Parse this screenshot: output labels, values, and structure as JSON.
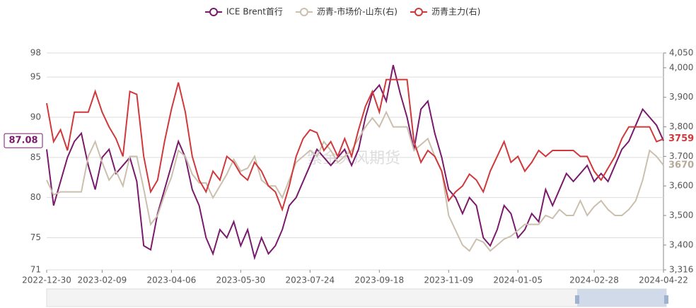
{
  "chart_data": {
    "type": "line",
    "categories": [
      "2022-12-30",
      null,
      null,
      null,
      null,
      null,
      null,
      null,
      "2023-02-09",
      null,
      null,
      null,
      null,
      null,
      null,
      null,
      null,
      null,
      "2023-04-06",
      null,
      null,
      null,
      null,
      null,
      null,
      null,
      null,
      null,
      "2023-05-30",
      null,
      null,
      null,
      null,
      null,
      null,
      null,
      null,
      null,
      "2023-07-24",
      null,
      null,
      null,
      null,
      null,
      null,
      null,
      null,
      null,
      "2023-09-18",
      null,
      null,
      null,
      null,
      null,
      null,
      null,
      null,
      null,
      "2023-11-09",
      null,
      null,
      null,
      null,
      null,
      null,
      null,
      null,
      null,
      "2024-01-05",
      null,
      null,
      null,
      null,
      null,
      null,
      null,
      null,
      null,
      null,
      "2024-02-28",
      null,
      null,
      null,
      null,
      null,
      null,
      null,
      null,
      null,
      "2024-04-22"
    ],
    "series": [
      {
        "name": "ICE Brent首行",
        "color": "#7a1a6c",
        "values": [
          86,
          79,
          82,
          85,
          87,
          88,
          84,
          81,
          85,
          86,
          83,
          84,
          85,
          82,
          74,
          73.5,
          78,
          81,
          84,
          87,
          85,
          81,
          79,
          75,
          73,
          76,
          75,
          77,
          74,
          76,
          72.5,
          75,
          73,
          74,
          76,
          79,
          80,
          82,
          84,
          86,
          85,
          84,
          85,
          86,
          84,
          86,
          90,
          93,
          94,
          92,
          96.5,
          93,
          90,
          86,
          91,
          92,
          88,
          85,
          81,
          80,
          78,
          80,
          79,
          75,
          74,
          76,
          79,
          78,
          75,
          76,
          78,
          77,
          81,
          79,
          81,
          83,
          82,
          83,
          84,
          82,
          83,
          82,
          84,
          86,
          87,
          89,
          91,
          90,
          89,
          87.08
        ]
      },
      {
        "name": "沥青-市场价-山东(右)",
        "color": "#cbbfae",
        "axis": "y2",
        "values": [
          3620,
          3570,
          3580,
          3580,
          3580,
          3580,
          3700,
          3750,
          3680,
          3620,
          3650,
          3600,
          3700,
          3700,
          3590,
          3470,
          3500,
          3570,
          3630,
          3720,
          3700,
          3640,
          3610,
          3610,
          3560,
          3600,
          3640,
          3690,
          3650,
          3660,
          3700,
          3620,
          3600,
          3600,
          3560,
          3620,
          3680,
          3700,
          3720,
          3700,
          3750,
          3720,
          3680,
          3700,
          3720,
          3760,
          3800,
          3830,
          3800,
          3850,
          3800,
          3800,
          3800,
          3720,
          3740,
          3760,
          3700,
          3650,
          3500,
          3450,
          3400,
          3380,
          3420,
          3410,
          3380,
          3400,
          3420,
          3430,
          3450,
          3470,
          3470,
          3470,
          3500,
          3490,
          3520,
          3500,
          3500,
          3550,
          3500,
          3530,
          3550,
          3520,
          3500,
          3500,
          3520,
          3550,
          3620,
          3720,
          3700,
          3670
        ]
      },
      {
        "name": "沥青主力(右)",
        "color": "#d0393b",
        "axis": "y2",
        "values": [
          3880,
          3750,
          3790,
          3720,
          3850,
          3850,
          3850,
          3920,
          3850,
          3800,
          3760,
          3700,
          3920,
          3910,
          3700,
          3580,
          3620,
          3750,
          3860,
          3950,
          3850,
          3700,
          3620,
          3580,
          3650,
          3620,
          3700,
          3680,
          3640,
          3620,
          3680,
          3650,
          3600,
          3580,
          3520,
          3600,
          3700,
          3760,
          3790,
          3780,
          3720,
          3750,
          3700,
          3760,
          3700,
          3790,
          3870,
          3920,
          3850,
          3960,
          3960,
          3960,
          3960,
          3750,
          3680,
          3720,
          3700,
          3650,
          3550,
          3580,
          3600,
          3640,
          3620,
          3580,
          3650,
          3700,
          3750,
          3680,
          3700,
          3650,
          3680,
          3720,
          3700,
          3720,
          3720,
          3720,
          3720,
          3700,
          3700,
          3650,
          3620,
          3660,
          3700,
          3760,
          3800,
          3800,
          3800,
          3800,
          3750,
          3759
        ]
      }
    ],
    "ylim": [
      71,
      98
    ],
    "yticks": [
      71,
      75,
      80,
      85,
      90,
      95,
      98
    ],
    "y2lim": [
      3316,
      4050
    ],
    "y2ticks": [
      {
        "value": 3316,
        "label": "3,316"
      },
      {
        "value": 3400,
        "label": "3,400"
      },
      {
        "value": 3500,
        "label": "3,500"
      },
      {
        "value": 3600,
        "label": "3,600"
      },
      {
        "value": 3700,
        "label": "3,700"
      },
      {
        "value": 3800,
        "label": "3,800"
      },
      {
        "value": 3900,
        "label": "3,900"
      },
      {
        "value": 4000,
        "label": "4,000"
      },
      {
        "value": 4050,
        "label": "4,050"
      }
    ],
    "grid": true,
    "legend": "top",
    "end_labels": [
      {
        "value": 87.08,
        "axis": "y",
        "color": "#7a1a6c"
      },
      {
        "value": 3759,
        "axis": "y2",
        "color": "#d0393b"
      },
      {
        "value": 3670,
        "axis": "y2",
        "color": "#b5aa98"
      }
    ],
    "watermark": "紫金天风期货"
  }
}
